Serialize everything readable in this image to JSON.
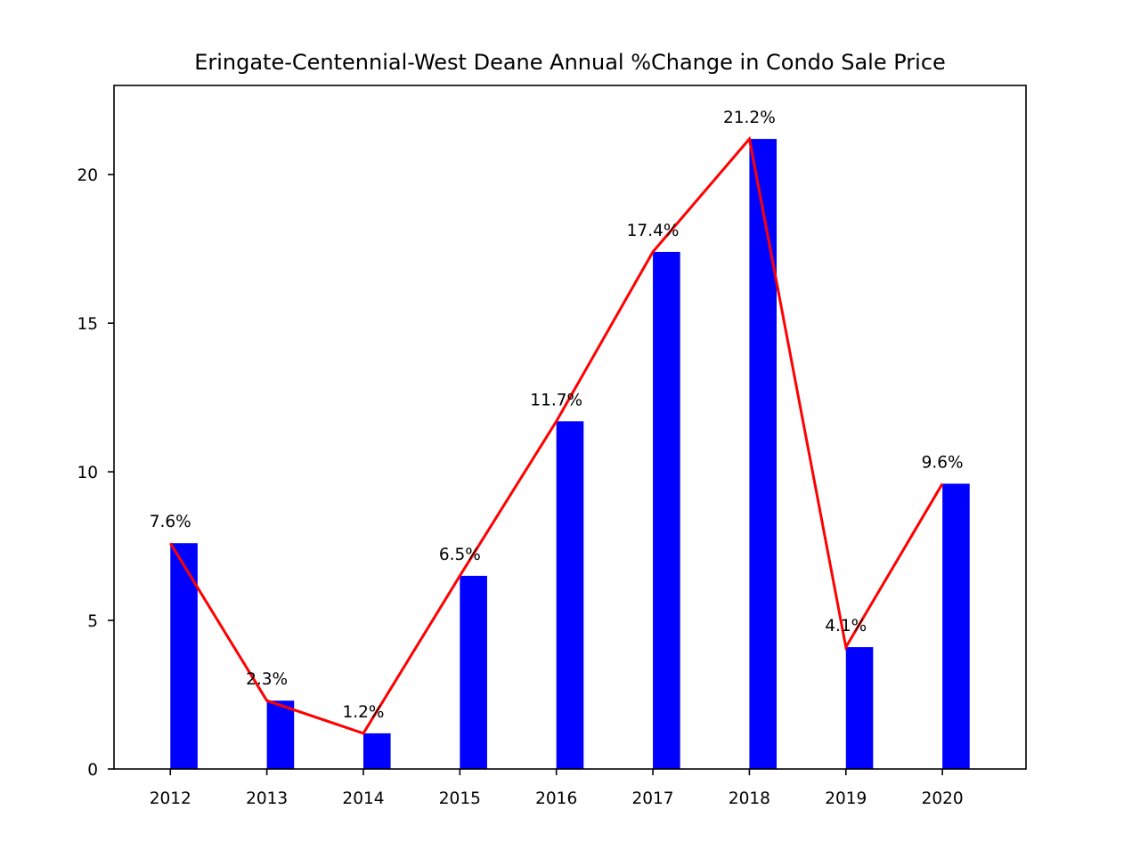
{
  "chart_data": {
    "type": "bar",
    "title": "Eringate-Centennial-West Deane Annual %Change in Condo Sale Price",
    "xlabel": "",
    "ylabel": "",
    "categories": [
      "2012",
      "2013",
      "2014",
      "2015",
      "2016",
      "2017",
      "2018",
      "2019",
      "2020"
    ],
    "values": [
      7.6,
      2.3,
      1.2,
      6.5,
      11.7,
      17.4,
      21.2,
      4.1,
      9.6
    ],
    "data_labels": [
      "7.6%",
      "2.3%",
      "1.2%",
      "6.5%",
      "11.7%",
      "17.4%",
      "21.2%",
      "4.1%",
      "9.6%"
    ],
    "overlay_line": {
      "type": "line",
      "values": [
        7.6,
        2.3,
        1.2,
        6.5,
        11.7,
        17.4,
        21.2,
        4.1,
        9.6
      ]
    },
    "ylim": [
      0,
      23
    ],
    "yticks": [
      "0",
      "5",
      "10",
      "15",
      "20"
    ],
    "ytick_values": [
      0,
      5,
      10,
      15,
      20
    ],
    "grid": false,
    "colors": {
      "bar": "#0000ff",
      "line": "#ff0000",
      "axis": "#000000"
    }
  }
}
